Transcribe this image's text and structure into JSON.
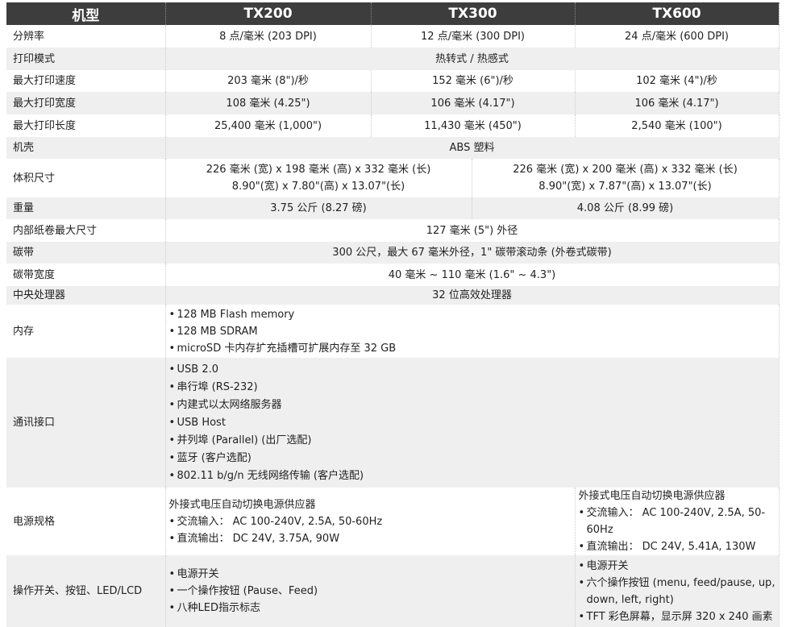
{
  "header": {
    "label": "机型",
    "models": [
      "TX200",
      "TX300",
      "TX600"
    ]
  },
  "rows": {
    "resolution": {
      "label": "分辨率",
      "tx200": "8 点/毫米 (203 DPI)",
      "tx300": "12 点/毫米 (300 DPI)",
      "tx600": "24 点/毫米 (600 DPI)"
    },
    "print_mode": {
      "label": "打印模式",
      "all": "热转式 / 热感式"
    },
    "speed": {
      "label": "最大打印速度",
      "tx200": "203 毫米 (8\")/秒",
      "tx300": "152 毫米 (6\")/秒",
      "tx600": "102 毫米 (4\")/秒"
    },
    "width": {
      "label": "最大打印宽度",
      "tx200": "108 毫米 (4.25\")",
      "tx300": "106 毫米 (4.17\")",
      "tx600": "106 毫米 (4.17\")"
    },
    "length": {
      "label": "最大打印长度",
      "tx200": "25,400 毫米 (1,000\")",
      "tx300": "11,430 毫米 (450\")",
      "tx600": "2,540 毫米 (100\")"
    },
    "housing": {
      "label": "机壳",
      "all": "ABS 塑料"
    },
    "dimensions": {
      "label": "体积尺寸",
      "left": [
        "226 毫米 (宽) x 198 毫米 (高) x 332 毫米 (长)",
        "8.90\"(宽) x 7.80\"(高) x 13.07\"(长)"
      ],
      "right": [
        "226 毫米 (宽) x 200 毫米 (高) x 332 毫米 (长)",
        "8.90\"(宽) x 7.87\"(高) x 13.07\"(长)"
      ]
    },
    "weight": {
      "label": "重量",
      "left": "3.75 公斤 (8.27 磅)",
      "right": "4.08 公斤 (8.99 磅)"
    },
    "roll": {
      "label": "内部纸卷最大尺寸",
      "all": "127 毫米 (5\") 外径"
    },
    "ribbon": {
      "label": "碳带",
      "all": "300 公尺，最大 67 毫米外径，1\" 碳带滚动条 (外卷式碳带)"
    },
    "ribbon_width": {
      "label": "碳带宽度",
      "all": "40 毫米 ~ 110 毫米 (1.6\" ~ 4.3\")"
    },
    "cpu": {
      "label": "中央处理器",
      "all": "32 位高效处理器"
    },
    "memory": {
      "label": "内存",
      "items": [
        "128 MB Flash memory",
        "128 MB SDRAM",
        "microSD 卡内存扩充插槽可扩展内存至 32 GB"
      ]
    },
    "interface": {
      "label": "通讯接口",
      "items": [
        "USB 2.0",
        "串行埠 (RS-232)",
        "内建式以太网络服务器",
        "USB Host",
        "并列埠 (Parallel) (出厂选配)",
        "蓝牙 (客户选配)",
        "802.11 b/g/n 无线网络传输 (客户选配)"
      ]
    },
    "power": {
      "label": "电源规格",
      "left": {
        "title": "外接式电压自动切换电源供应器",
        "items": [
          "交流输入： AC 100-240V, 2.5A, 50-60Hz",
          "直流输出： DC 24V, 3.75A, 90W"
        ]
      },
      "right": {
        "title": "外接式电压自动切换电源供应器",
        "items": [
          "交流输入： AC 100-240V, 2.5A, 50-60Hz",
          "直流输出： DC 24V, 5.41A, 130W"
        ]
      }
    },
    "controls": {
      "label": "操作开关、按钮、LED/LCD",
      "left": [
        "电源开关",
        "一个操作按钮 (Pause、Feed)",
        "八种LED指示标志"
      ],
      "right": [
        "电源开关",
        "六个操作按钮 (menu, feed/pause, up, down, left, right)",
        "TFT 彩色屏幕，显示屏 320 x 240 画素"
      ]
    }
  }
}
